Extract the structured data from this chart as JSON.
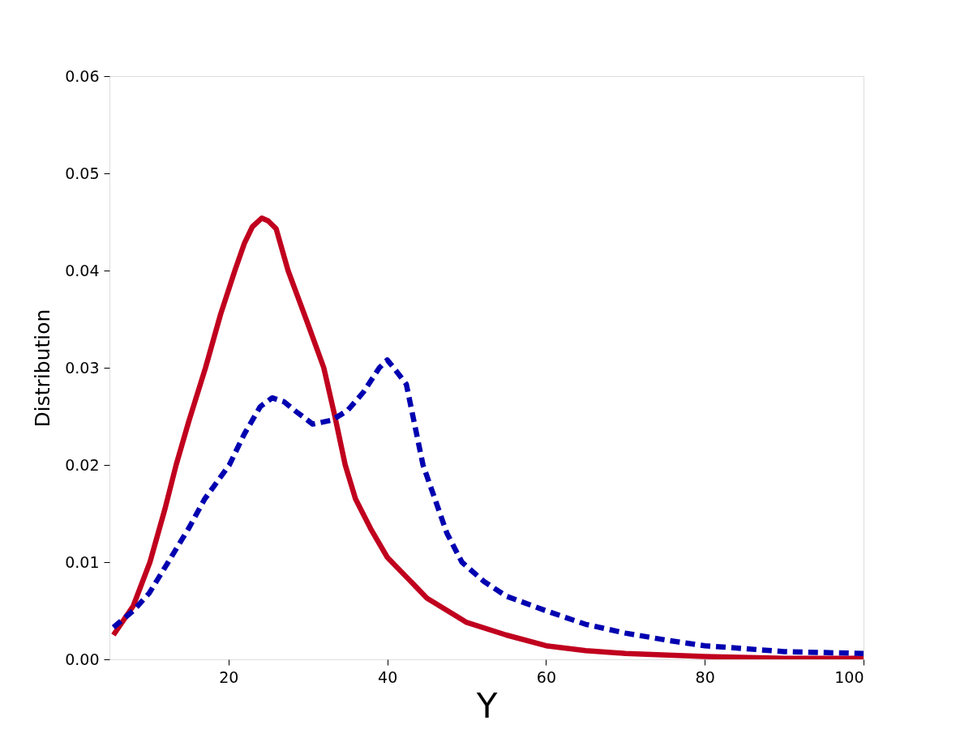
{
  "chart_data": {
    "type": "line",
    "xlabel": "Y",
    "ylabel": "Distribution",
    "xlim": [
      5,
      100
    ],
    "ylim": [
      0,
      0.06
    ],
    "xticks": [
      20,
      40,
      60,
      80,
      100
    ],
    "yticks": [
      {
        "value": 0,
        "label": "0.00"
      },
      {
        "value": 0.01,
        "label": "0.01"
      },
      {
        "value": 0.02,
        "label": "0.02"
      },
      {
        "value": 0.03,
        "label": "0.03"
      },
      {
        "value": 0.04,
        "label": "0.04"
      },
      {
        "value": 0.05,
        "label": "0.05"
      },
      {
        "value": 0.06,
        "label": "0.06"
      }
    ],
    "grid": false,
    "legend": false,
    "series": [
      {
        "color": "#c0001e",
        "line_style": "solid",
        "x": [
          5.5,
          8,
          10.1,
          12,
          13.4,
          15,
          17.1,
          19,
          20.8,
          22,
          23,
          24.2,
          25,
          26,
          27.5,
          29,
          30,
          32,
          33.4,
          34.7,
          36,
          38,
          40,
          45,
          50,
          55,
          60,
          65,
          70,
          80,
          90,
          100
        ],
        "values": [
          0.0025,
          0.0055,
          0.01,
          0.0155,
          0.02,
          0.0245,
          0.03,
          0.0355,
          0.04,
          0.0428,
          0.0445,
          0.0454,
          0.0451,
          0.0443,
          0.04,
          0.0367,
          0.0345,
          0.03,
          0.025,
          0.02,
          0.0165,
          0.0133,
          0.0105,
          0.0063,
          0.0038,
          0.0025,
          0.0014,
          0.0009,
          0.0006,
          0.0003,
          0.0001,
          0.0001
        ]
      },
      {
        "color": "#0000b0",
        "line_style": "dashed",
        "x": [
          5.5,
          8,
          10,
          12.4,
          15,
          17,
          20.1,
          22,
          24,
          25.5,
          27,
          28.5,
          30.6,
          33,
          35,
          37,
          39,
          40,
          41,
          42.4,
          44.5,
          46,
          47.5,
          49.4,
          52.2,
          55,
          60,
          65,
          70,
          75,
          80,
          85,
          90,
          95,
          100
        ],
        "values": [
          0.0033,
          0.005,
          0.0068,
          0.01,
          0.0135,
          0.0165,
          0.02,
          0.0232,
          0.026,
          0.0269,
          0.0265,
          0.0255,
          0.0242,
          0.0246,
          0.0256,
          0.0275,
          0.03,
          0.0308,
          0.0298,
          0.0283,
          0.02,
          0.0165,
          0.013,
          0.01,
          0.008,
          0.0065,
          0.005,
          0.0036,
          0.0027,
          0.002,
          0.0014,
          0.0011,
          0.0008,
          0.0007,
          0.0006
        ]
      }
    ]
  }
}
